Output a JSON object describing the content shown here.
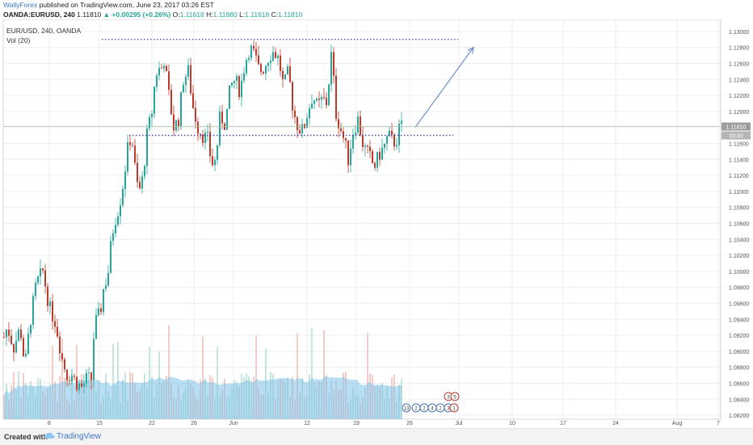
{
  "header": {
    "author": "WallyForex",
    "published": "published on TradingView.com, June 23, 2017 03:26 EST",
    "symbol": "OANDA:EURUSD, 240",
    "last": "1.11810",
    "change_arrow": "▲",
    "change": "+0.00295 (+0.26%)",
    "o_label": "O:",
    "o": "1.11618",
    "h_label": "H:",
    "h": "1.11880",
    "l_label": "L:",
    "l": "1.11618",
    "c_label": "C:",
    "c": "1.11810"
  },
  "legend": {
    "symbol_line": "EUR/USD, 240, OANDA",
    "vol_line": "Vol (20)"
  },
  "footer": {
    "created_with": "Created with",
    "brand": "TradingView",
    "logo_icon": "tradingview-cloud-icon"
  },
  "colors": {
    "up": "#26a69a",
    "down": "#c0392b",
    "level_line": "#3b3b9e",
    "arrow": "#6e8fc9",
    "volume_ma": "#7fc3ea",
    "price_tag": "#9e9e9e"
  },
  "chart_data": {
    "type": "candlestick",
    "y_axis_ticks": [
      "1.13000",
      "1.12800",
      "1.12600",
      "1.12400",
      "1.12200",
      "1.12000",
      "1.11800",
      "1.11600",
      "1.11400",
      "1.11200",
      "1.11000",
      "1.10800",
      "1.10600",
      "1.10400",
      "1.10200",
      "1.10000",
      "1.09800",
      "1.09600",
      "1.09400",
      "1.09200",
      "1.09000",
      "1.08800",
      "1.08600",
      "1.08400",
      "1.08200"
    ],
    "ylim": [
      1.0815,
      1.1315
    ],
    "x_axis_ticks": [
      "8",
      "15",
      "22",
      "26",
      "Jun",
      "12",
      "19",
      "26",
      "Jul",
      "10",
      "17",
      "24",
      "Aug",
      "7"
    ],
    "last_price_label": "1.11810",
    "countdown_label": "33:40",
    "resistance_level": 1.129,
    "support_level": 1.117,
    "projection_target": 1.128,
    "event_markers": [
      "13",
      "2",
      "2",
      "4",
      "2",
      "3",
      "1",
      "3",
      "5"
    ],
    "price_path": [
      [
        0,
        1.0905
      ],
      [
        8,
        1.093
      ],
      [
        16,
        1.0905
      ],
      [
        24,
        1.093
      ],
      [
        30,
        1.088
      ],
      [
        36,
        1.0935
      ],
      [
        44,
        1.0985
      ],
      [
        52,
        1.1
      ],
      [
        60,
        1.0955
      ],
      [
        68,
        1.0935
      ],
      [
        76,
        1.089
      ],
      [
        82,
        1.087
      ],
      [
        88,
        1.087
      ],
      [
        94,
        1.086
      ],
      [
        100,
        1.0855
      ],
      [
        106,
        1.0865
      ],
      [
        112,
        1.0865
      ],
      [
        116,
        1.0935
      ],
      [
        120,
        1.094
      ],
      [
        124,
        1.0955
      ],
      [
        128,
        1.0985
      ],
      [
        132,
        1.099
      ],
      [
        136,
        1.103
      ],
      [
        140,
        1.106
      ],
      [
        146,
        1.108
      ],
      [
        150,
        1.11
      ],
      [
        154,
        1.113
      ],
      [
        158,
        1.116
      ],
      [
        162,
        1.117
      ],
      [
        166,
        1.113
      ],
      [
        170,
        1.11
      ],
      [
        174,
        1.1105
      ],
      [
        178,
        1.114
      ],
      [
        182,
        1.118
      ],
      [
        186,
        1.119
      ],
      [
        190,
        1.123
      ],
      [
        194,
        1.1255
      ],
      [
        198,
        1.125
      ],
      [
        202,
        1.1265
      ],
      [
        208,
        1.122
      ],
      [
        214,
        1.118
      ],
      [
        220,
        1.119
      ],
      [
        226,
        1.124
      ],
      [
        232,
        1.125
      ],
      [
        238,
        1.1205
      ],
      [
        244,
        1.118
      ],
      [
        250,
        1.117
      ],
      [
        256,
        1.1165
      ],
      [
        260,
        1.114
      ],
      [
        264,
        1.113
      ],
      [
        268,
        1.116
      ],
      [
        272,
        1.12
      ],
      [
        276,
        1.118
      ],
      [
        280,
        1.12
      ],
      [
        284,
        1.123
      ],
      [
        290,
        1.124
      ],
      [
        296,
        1.1225
      ],
      [
        302,
        1.126
      ],
      [
        308,
        1.128
      ],
      [
        314,
        1.127
      ],
      [
        320,
        1.125
      ],
      [
        326,
        1.1255
      ],
      [
        332,
        1.127
      ],
      [
        338,
        1.1275
      ],
      [
        344,
        1.1265
      ],
      [
        350,
        1.123
      ],
      [
        356,
        1.125
      ],
      [
        362,
        1.12
      ],
      [
        368,
        1.118
      ],
      [
        374,
        1.1175
      ],
      [
        380,
        1.12
      ],
      [
        386,
        1.122
      ],
      [
        392,
        1.1205
      ],
      [
        398,
        1.1215
      ],
      [
        404,
        1.121
      ],
      [
        408,
        1.1265
      ],
      [
        410,
        1.1275
      ],
      [
        414,
        1.12
      ],
      [
        420,
        1.118
      ],
      [
        426,
        1.116
      ],
      [
        430,
        1.114
      ],
      [
        436,
        1.1175
      ],
      [
        442,
        1.119
      ],
      [
        448,
        1.116
      ],
      [
        452,
        1.115
      ],
      [
        456,
        1.1145
      ],
      [
        462,
        1.113
      ],
      [
        468,
        1.1145
      ],
      [
        474,
        1.1155
      ],
      [
        480,
        1.117
      ],
      [
        486,
        1.116
      ],
      [
        490,
        1.1165
      ],
      [
        494,
        1.1181
      ]
    ]
  }
}
